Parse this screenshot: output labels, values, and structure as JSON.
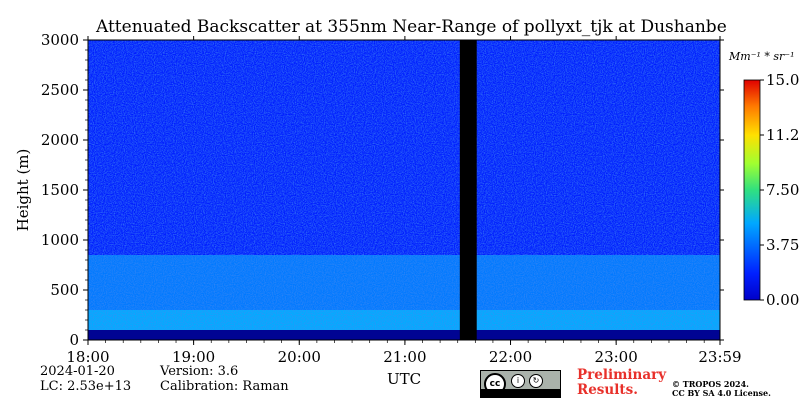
{
  "chart_data": {
    "type": "heatmap",
    "title": "Attenuated Backscatter at 355nm Near-Range of pollyxt_tjk at Dushanbe",
    "xlabel": "UTC",
    "ylabel": "Height (m)",
    "x_ticks": [
      "18:00",
      "19:00",
      "20:00",
      "21:00",
      "22:00",
      "23:00",
      "23:59"
    ],
    "x_tick_hours": [
      18,
      19,
      20,
      21,
      22,
      23,
      23.983
    ],
    "xlim_hours": [
      18,
      23.983
    ],
    "y_ticks": [
      0,
      500,
      1000,
      1500,
      2000,
      2500,
      3000
    ],
    "ylim": [
      0,
      3000
    ],
    "colorbar": {
      "unit_label": "Mm⁻¹ * sr⁻¹",
      "range": [
        0,
        15
      ],
      "tick_labels": [
        "0.00",
        "3.75",
        "7.50",
        "11.25",
        "15.00"
      ],
      "tick_values": [
        0,
        3.75,
        7.5,
        11.25,
        15
      ],
      "colormap": "jet"
    },
    "data_gap_hours": [
      21.52,
      21.68
    ],
    "layers": [
      {
        "height_range_m": [
          0,
          100
        ],
        "level": 0.0
      },
      {
        "height_range_m": [
          100,
          300
        ],
        "level": 4.8
      },
      {
        "height_range_m": [
          300,
          850
        ],
        "level": 3.9
      },
      {
        "height_range_m": [
          850,
          3000
        ],
        "level": 2.3
      }
    ]
  },
  "footer": {
    "date": "2024-01-20",
    "lc": "LC: 2.53e+13",
    "version": "Version: 3.6",
    "calibration": "Calibration: Raman",
    "preliminary_line1": "Preliminary",
    "preliminary_line2": "Results.",
    "copyright_line1": "© TROPOS 2024.",
    "copyright_line2": "CC BY SA 4.0 License.",
    "cc_badge_text": "cc",
    "cc_by": "BY",
    "cc_sa": "SA"
  }
}
